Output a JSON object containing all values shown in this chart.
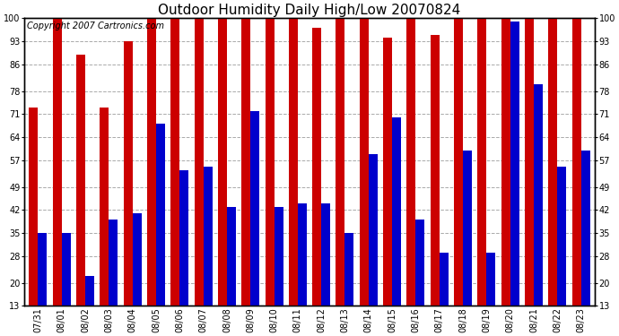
{
  "title": "Outdoor Humidity Daily High/Low 20070824",
  "copyright": "Copyright 2007 Cartronics.com",
  "dates": [
    "07/31",
    "08/01",
    "08/02",
    "08/03",
    "08/04",
    "08/05",
    "08/06",
    "08/07",
    "08/08",
    "08/09",
    "08/10",
    "08/11",
    "08/12",
    "08/13",
    "08/14",
    "08/15",
    "08/16",
    "08/17",
    "08/18",
    "08/19",
    "08/20",
    "08/21",
    "08/22",
    "08/23"
  ],
  "highs": [
    73,
    100,
    89,
    73,
    93,
    100,
    100,
    100,
    100,
    100,
    100,
    100,
    97,
    100,
    100,
    94,
    100,
    95,
    100,
    100,
    100,
    100,
    100,
    100
  ],
  "lows": [
    35,
    35,
    22,
    39,
    41,
    68,
    54,
    55,
    43,
    72,
    43,
    44,
    44,
    35,
    59,
    70,
    39,
    29,
    60,
    29,
    99,
    80,
    55,
    60
  ],
  "high_color": "#cc0000",
  "low_color": "#0000cc",
  "bg_color": "#ffffff",
  "grid_color": "#aaaaaa",
  "yticks": [
    13,
    20,
    28,
    35,
    42,
    49,
    57,
    64,
    71,
    78,
    86,
    93,
    100
  ],
  "ymin": 13,
  "ymax": 100,
  "bar_width": 0.38,
  "title_fontsize": 11,
  "axis_fontsize": 7,
  "copyright_fontsize": 7
}
